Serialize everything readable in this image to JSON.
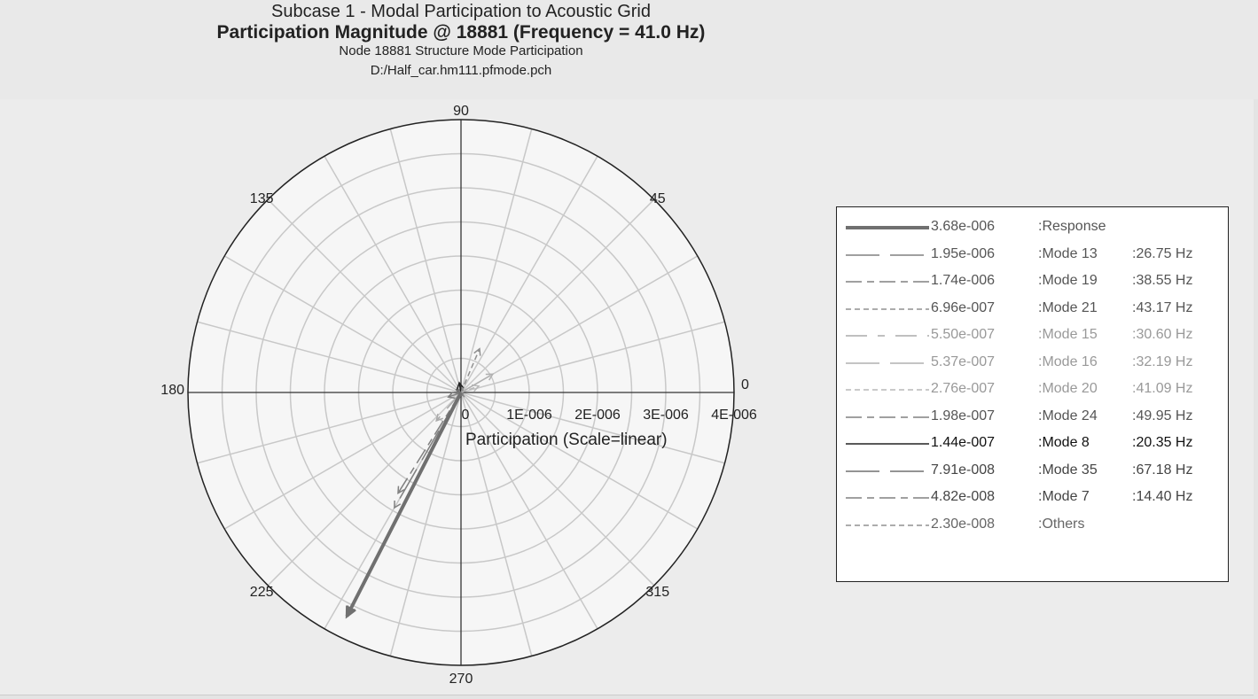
{
  "header": {
    "title": "Subcase 1 - Modal Participation to Acoustic Grid",
    "subtitle": "Participation Magnitude @ 18881 (Frequency = 41.0 Hz)",
    "line3": "Node 18881 Structure Mode Participation",
    "line4": "D:/Half_car.hm111.pfmode.pch"
  },
  "chart_data": {
    "type": "polar",
    "title": "Participation Magnitude @ 18881 (Frequency = 41.0 Hz)",
    "radial_label": "Participation (Scale=linear)",
    "radial_range": [
      0,
      4e-06
    ],
    "radial_ticks": [
      "0",
      "1E-006",
      "2E-006",
      "3E-006",
      "4E-006"
    ],
    "angle_ticks": [
      "0",
      "45",
      "90",
      "135",
      "180",
      "225",
      "270",
      "315"
    ],
    "grid": true,
    "legend_position": "right",
    "series": [
      {
        "name": "Response",
        "magnitude": "3.68e-006",
        "freq": "",
        "r": 3.68e-06,
        "angle": 243,
        "color": "#707070",
        "dash": "",
        "width": 4,
        "text_color": "#555555"
      },
      {
        "name": "Mode 13",
        "magnitude": "1.95e-006",
        "freq": ":26.75 Hz",
        "r": 1.95e-06,
        "angle": 240,
        "color": "#808080",
        "dash": "38 12",
        "width": 1.5,
        "text_color": "#555555"
      },
      {
        "name": "Mode 19",
        "magnitude": "1.74e-006",
        "freq": ":38.55 Hz",
        "r": 1.74e-06,
        "angle": 238,
        "color": "#808080",
        "dash": "18 6 8 6",
        "width": 1.5,
        "text_color": "#555555"
      },
      {
        "name": "Mode 21",
        "magnitude": "6.96e-007",
        "freq": ":43.17 Hz",
        "r": 6.96e-07,
        "angle": 67,
        "color": "#909090",
        "dash": "6 4",
        "width": 1.5,
        "text_color": "#555555"
      },
      {
        "name": "Mode 15",
        "magnitude": "5.50e-007",
        "freq": ":30.60 Hz",
        "r": 5.5e-07,
        "angle": 229,
        "color": "#aaaaaa",
        "dash": "24 12 8 12",
        "width": 1.5,
        "text_color": "#999999"
      },
      {
        "name": "Mode 16",
        "magnitude": "5.37e-007",
        "freq": ":32.19 Hz",
        "r": 5.37e-07,
        "angle": 30,
        "color": "#b0b0b0",
        "dash": "38 12",
        "width": 1.5,
        "text_color": "#999999"
      },
      {
        "name": "Mode 20",
        "magnitude": "2.76e-007",
        "freq": ":41.09 Hz",
        "r": 2.76e-07,
        "angle": 20,
        "color": "#b8b8b8",
        "dash": "6 4",
        "width": 1.5,
        "text_color": "#999999"
      },
      {
        "name": "Mode 24",
        "magnitude": "1.98e-007",
        "freq": ":49.95 Hz",
        "r": 1.98e-07,
        "angle": 200,
        "color": "#808080",
        "dash": "18 6 8 6",
        "width": 1.5,
        "text_color": "#555555"
      },
      {
        "name": "Mode 8",
        "magnitude": "1.44e-007",
        "freq": ":20.35 Hz",
        "r": 1.44e-07,
        "angle": 100,
        "color": "#222222",
        "dash": "",
        "width": 1.5,
        "text_color": "#111111"
      },
      {
        "name": "Mode 35",
        "magnitude": "7.91e-008",
        "freq": ":67.18 Hz",
        "r": 7.91e-08,
        "angle": 150,
        "color": "#707070",
        "dash": "38 12",
        "width": 1.5,
        "text_color": "#444444"
      },
      {
        "name": "Mode 7",
        "magnitude": "4.82e-008",
        "freq": ":14.40 Hz",
        "r": 4.82e-08,
        "angle": 300,
        "color": "#808080",
        "dash": "18 6 8 6",
        "width": 1.5,
        "text_color": "#444444"
      },
      {
        "name": "Others",
        "magnitude": "2.30e-008",
        "freq": "",
        "r": 2.3e-08,
        "angle": 90,
        "color": "#909090",
        "dash": "6 4",
        "width": 1.5,
        "text_color": "#666666"
      }
    ]
  }
}
